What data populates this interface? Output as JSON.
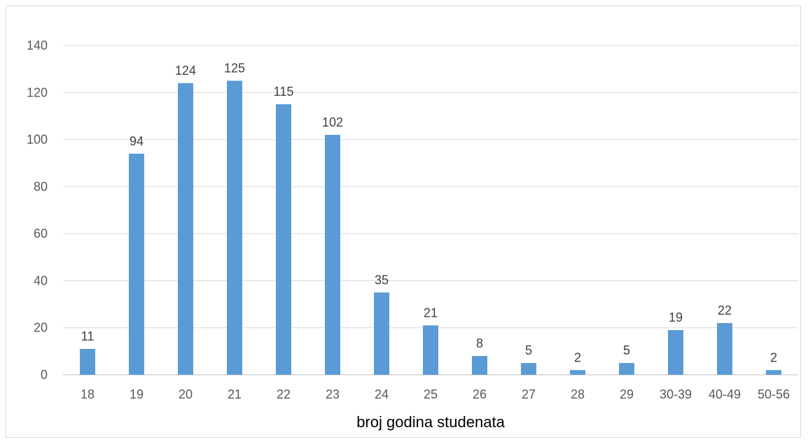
{
  "chart_data": {
    "type": "bar",
    "title": "",
    "xlabel": "broj godina studenata",
    "ylabel": "",
    "ylim": [
      0,
      140
    ],
    "yticks": [
      0,
      20,
      40,
      60,
      80,
      100,
      120,
      140
    ],
    "grid": true,
    "legend": "none",
    "bar_color": "#5b9bd5",
    "categories": [
      "18",
      "19",
      "20",
      "21",
      "22",
      "23",
      "24",
      "25",
      "26",
      "27",
      "28",
      "29",
      "30-39",
      "40-49",
      "50-56"
    ],
    "values": [
      11,
      94,
      124,
      125,
      115,
      102,
      35,
      21,
      8,
      5,
      2,
      5,
      19,
      22,
      2
    ]
  }
}
